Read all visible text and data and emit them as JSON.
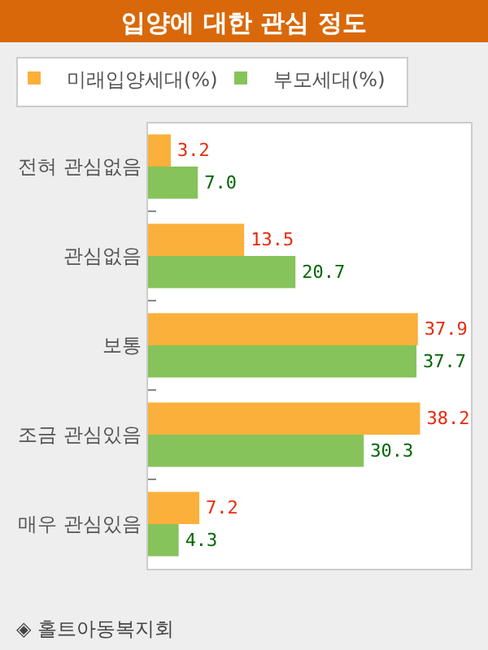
{
  "chart_data": {
    "type": "bar",
    "orientation": "horizontal",
    "title": "입양에 대한 관심 정도",
    "categories": [
      "전혀 관심없음",
      "관심없음",
      "보통",
      "조금 관심있음",
      "매우 관심있음"
    ],
    "series": [
      {
        "name": "미래입양세대(%)",
        "color": "#fbb03b",
        "values": [
          3.2,
          13.5,
          37.9,
          38.2,
          7.2
        ],
        "value_labels": [
          "3.2",
          "13.5",
          "37.9",
          "38.2",
          "7.2"
        ]
      },
      {
        "name": "부모세대(%)",
        "color": "#86c35a",
        "values": [
          7.0,
          20.7,
          37.7,
          30.3,
          4.3
        ],
        "value_labels": [
          "7.0",
          "20.7",
          "37.7",
          "30.3",
          "4.3"
        ]
      }
    ],
    "legend": "top",
    "annotations": [
      "◈ 홀트아동복지회"
    ]
  }
}
